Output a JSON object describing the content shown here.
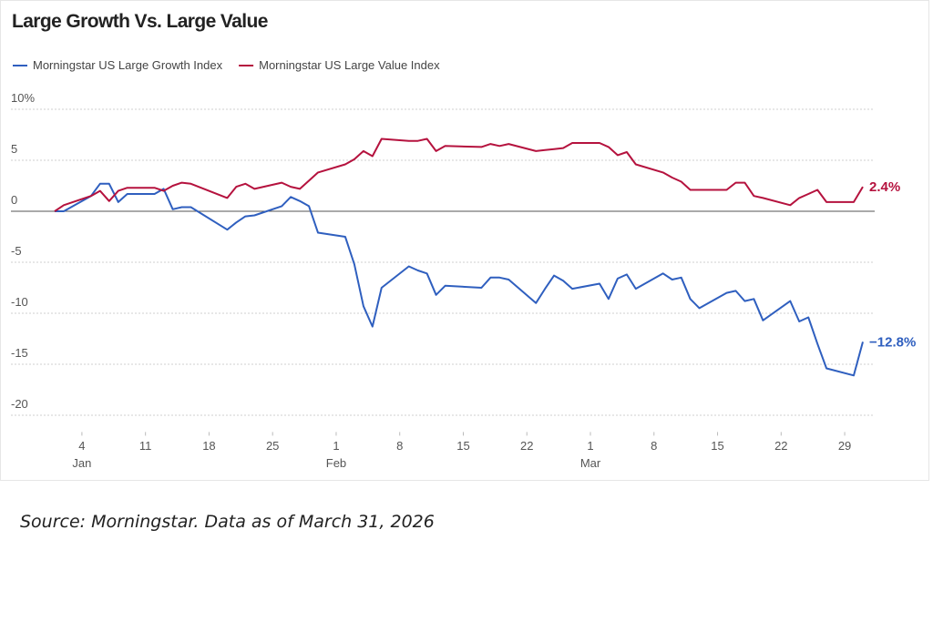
{
  "chart_data": {
    "type": "line",
    "title": "Large Growth Vs. Large Value",
    "x": [
      1,
      2,
      5,
      6,
      7,
      8,
      9,
      12,
      13,
      14,
      15,
      16,
      20,
      21,
      22,
      23,
      26,
      27,
      28,
      29,
      30,
      33,
      34,
      35,
      36,
      37,
      40,
      41,
      42,
      43,
      44,
      48,
      49,
      50,
      51,
      54,
      55,
      56,
      57,
      58,
      61,
      62,
      63,
      64,
      65,
      68,
      69,
      70,
      71,
      72,
      75,
      76,
      77,
      78,
      79,
      82,
      83,
      84,
      85,
      86,
      89,
      90
    ],
    "series": [
      {
        "name": "Morningstar US Large Growth Index",
        "color": "#2f5fbf",
        "last_label": "−12.8%",
        "values": [
          0,
          0,
          1.5,
          2.7,
          2.7,
          0.9,
          1.7,
          1.7,
          2.2,
          0.2,
          0.4,
          0.4,
          -1.8,
          -1.1,
          -0.5,
          -0.4,
          0.5,
          1.4,
          1.0,
          0.5,
          -2.1,
          -2.5,
          -5.2,
          -9.3,
          -11.3,
          -7.5,
          -5.4,
          -5.8,
          -6.1,
          -8.2,
          -7.3,
          -7.5,
          -6.5,
          -6.5,
          -6.7,
          -9.0,
          -7.6,
          -6.3,
          -6.8,
          -7.6,
          -7.1,
          -8.6,
          -6.6,
          -6.2,
          -7.6,
          -6.1,
          -6.7,
          -6.5,
          -8.6,
          -9.5,
          -8.0,
          -7.8,
          -8.8,
          -8.6,
          -10.7,
          -8.8,
          -10.8,
          -10.4,
          -13.0,
          -15.4,
          -16.1,
          -12.8
        ]
      },
      {
        "name": "Morningstar US Large Value Index",
        "color": "#b5123e",
        "last_label": "2.4%",
        "values": [
          0,
          0.6,
          1.5,
          2.0,
          1.0,
          2.0,
          2.3,
          2.3,
          2.0,
          2.5,
          2.8,
          2.7,
          1.3,
          2.4,
          2.7,
          2.2,
          2.8,
          2.4,
          2.2,
          3.0,
          3.8,
          4.6,
          5.1,
          5.9,
          5.4,
          7.1,
          6.9,
          6.9,
          7.1,
          5.9,
          6.4,
          6.3,
          6.6,
          6.4,
          6.6,
          5.9,
          6.0,
          6.1,
          6.2,
          6.7,
          6.7,
          6.3,
          5.5,
          5.8,
          4.6,
          3.8,
          3.3,
          2.9,
          2.1,
          2.1,
          2.1,
          2.8,
          2.8,
          1.5,
          1.3,
          0.6,
          1.3,
          1.7,
          2.1,
          0.9,
          0.9,
          2.4
        ]
      }
    ],
    "xlim": [
      1,
      90
    ],
    "xticks": [
      4,
      11,
      18,
      25,
      {
        "value": 32,
        "label": "1"
      },
      {
        "value": 39,
        "label": "8"
      },
      {
        "value": 46,
        "label": "15"
      },
      {
        "value": 53,
        "label": "22"
      },
      {
        "value": 60,
        "label": "1"
      },
      {
        "value": 67,
        "label": "8"
      },
      {
        "value": 74,
        "label": "15"
      },
      {
        "value": 81,
        "label": "22"
      },
      {
        "value": 88,
        "label": "29"
      }
    ],
    "month_ticks": [
      {
        "value": 4,
        "label": "Jan"
      },
      {
        "value": 32,
        "label": "Feb"
      },
      {
        "value": 60,
        "label": "Mar"
      }
    ],
    "ylim": [
      -22,
      11
    ],
    "yticks": [
      {
        "value": 10,
        "label": "10%"
      },
      5,
      0,
      -5,
      -10,
      -15,
      -20
    ],
    "grid": true
  },
  "source": "Source: Morningstar. Data as of March 31, 2026"
}
